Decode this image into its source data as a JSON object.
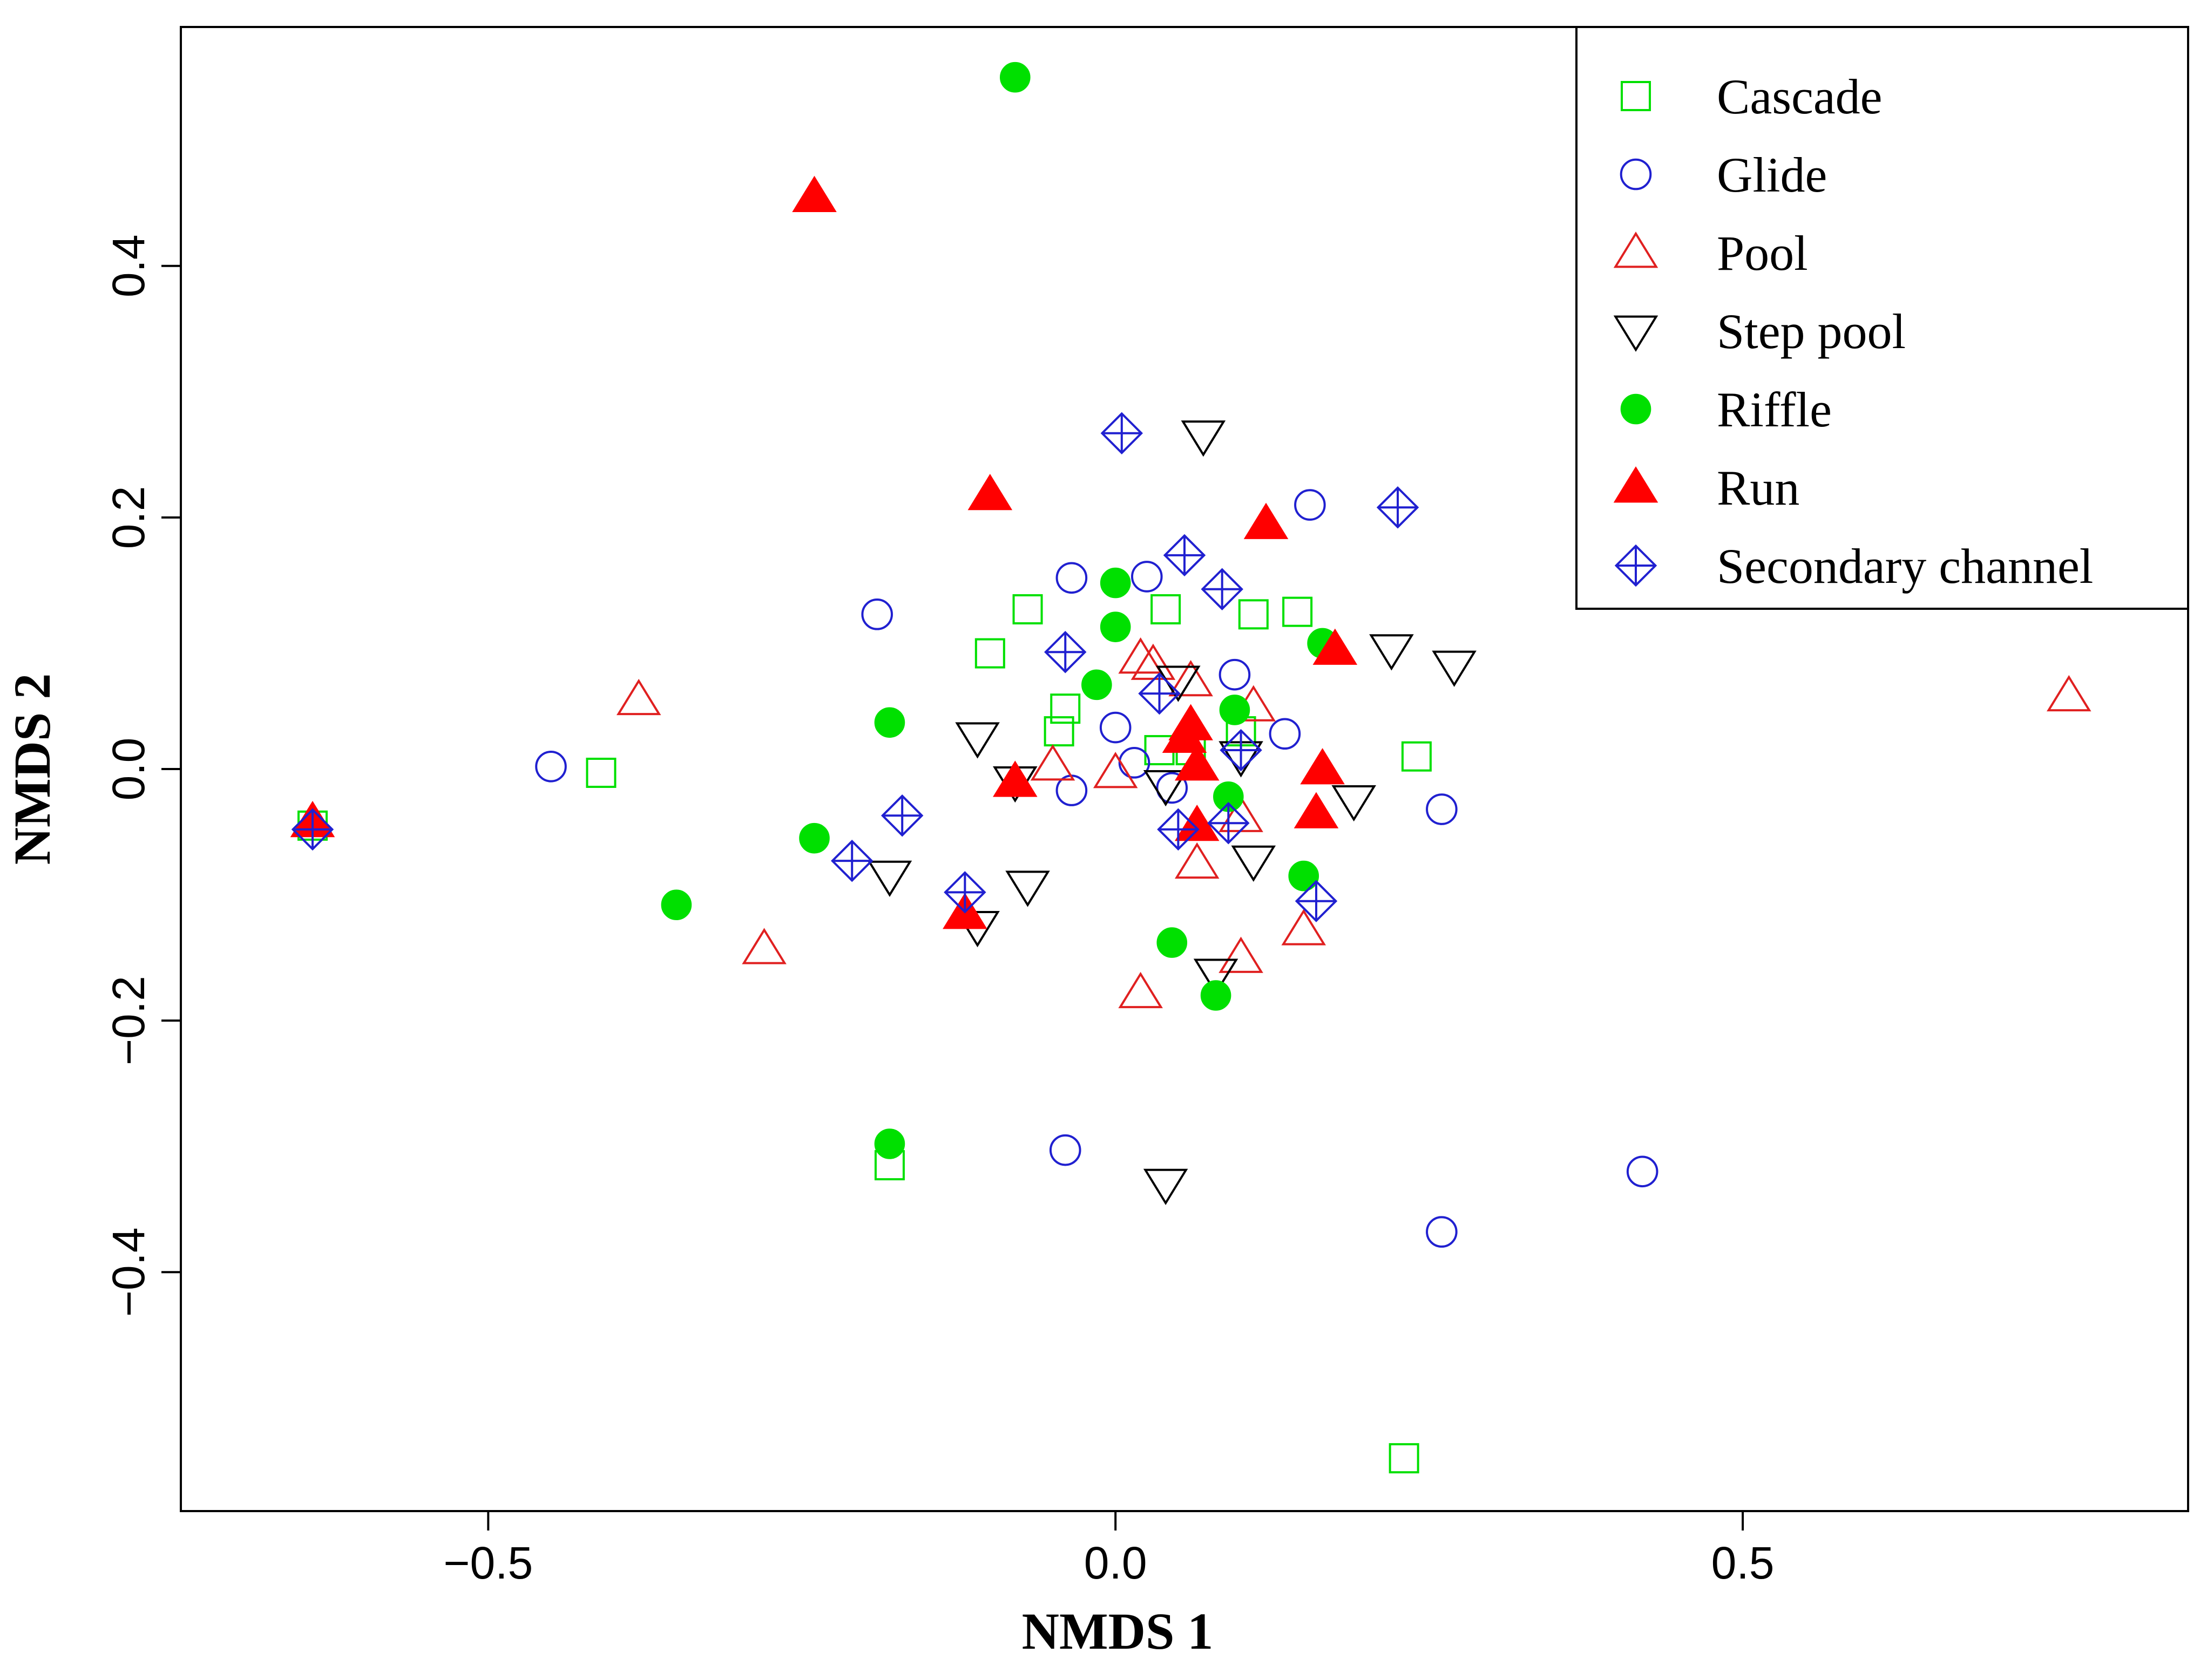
{
  "chart_data": {
    "type": "scatter",
    "title": "",
    "xlabel": "NMDS 1",
    "ylabel": "NMDS 2",
    "xlim": [
      -0.745,
      0.855
    ],
    "ylim": [
      -0.59,
      0.59
    ],
    "xticks": [
      -0.5,
      0.0,
      0.5
    ],
    "xtick_labels": [
      "−0.5",
      "0.0",
      "0.5"
    ],
    "yticks": [
      -0.4,
      -0.2,
      0.0,
      0.2,
      0.4
    ],
    "ytick_labels": [
      "−0.4",
      "−0.2",
      "0.0",
      "0.2",
      "0.4"
    ],
    "legend_position": "top-right",
    "series": [
      {
        "name": "Cascade",
        "marker": "square-open",
        "color": "#00e000",
        "points": [
          [
            -0.64,
            -0.045
          ],
          [
            -0.41,
            -0.003
          ],
          [
            -0.1,
            0.092
          ],
          [
            -0.07,
            0.127
          ],
          [
            -0.04,
            0.048
          ],
          [
            -0.045,
            0.03
          ],
          [
            0.04,
            0.127
          ],
          [
            0.035,
            0.015
          ],
          [
            0.06,
            0.015
          ],
          [
            0.11,
            0.123
          ],
          [
            0.145,
            0.125
          ],
          [
            0.24,
            0.01
          ],
          [
            0.1,
            0.03
          ],
          [
            -0.18,
            -0.315
          ],
          [
            0.23,
            -0.548
          ]
        ]
      },
      {
        "name": "Glide",
        "marker": "circle-open",
        "color": "#2020d0",
        "points": [
          [
            -0.45,
            0.002
          ],
          [
            -0.19,
            0.123
          ],
          [
            -0.035,
            0.152
          ],
          [
            0.025,
            0.153
          ],
          [
            0.155,
            0.21
          ],
          [
            0.0,
            0.033
          ],
          [
            0.015,
            0.005
          ],
          [
            0.045,
            -0.015
          ],
          [
            -0.035,
            -0.017
          ],
          [
            0.095,
            0.075
          ],
          [
            0.135,
            0.028
          ],
          [
            0.26,
            -0.032
          ],
          [
            -0.04,
            -0.303
          ],
          [
            0.26,
            -0.368
          ],
          [
            0.42,
            -0.32
          ]
        ]
      },
      {
        "name": "Pool",
        "marker": "triangle-up-open",
        "color": "#e02020",
        "points": [
          [
            -0.38,
            0.055
          ],
          [
            -0.28,
            -0.143
          ],
          [
            0.76,
            0.058
          ],
          [
            -0.05,
            0.003
          ],
          [
            0.0,
            -0.003
          ],
          [
            0.02,
            0.088
          ],
          [
            0.03,
            0.083
          ],
          [
            0.06,
            0.07
          ],
          [
            0.11,
            0.05
          ],
          [
            0.1,
            -0.038
          ],
          [
            0.065,
            -0.075
          ],
          [
            0.1,
            -0.15
          ],
          [
            0.15,
            -0.128
          ],
          [
            0.02,
            -0.178
          ]
        ]
      },
      {
        "name": "Step pool",
        "marker": "triangle-down-open",
        "color": "#000000",
        "points": [
          [
            0.07,
            0.265
          ],
          [
            -0.11,
            0.025
          ],
          [
            -0.08,
            -0.01
          ],
          [
            -0.18,
            -0.085
          ],
          [
            -0.11,
            -0.125
          ],
          [
            -0.07,
            -0.093
          ],
          [
            0.05,
            0.07
          ],
          [
            0.04,
            -0.013
          ],
          [
            0.1,
            0.01
          ],
          [
            0.11,
            -0.073
          ],
          [
            0.19,
            -0.025
          ],
          [
            0.22,
            0.095
          ],
          [
            0.27,
            0.082
          ],
          [
            0.08,
            -0.163
          ],
          [
            0.04,
            -0.33
          ]
        ]
      },
      {
        "name": "Riffle",
        "marker": "circle-filled",
        "color": "#00e000",
        "points": [
          [
            -0.08,
            0.55
          ],
          [
            -0.35,
            -0.108
          ],
          [
            -0.24,
            -0.055
          ],
          [
            -0.18,
            0.037
          ],
          [
            0.0,
            0.148
          ],
          [
            0.0,
            0.113
          ],
          [
            -0.015,
            0.067
          ],
          [
            0.095,
            0.047
          ],
          [
            0.165,
            0.1
          ],
          [
            0.09,
            -0.022
          ],
          [
            0.15,
            -0.085
          ],
          [
            0.045,
            -0.138
          ],
          [
            0.08,
            -0.18
          ],
          [
            -0.18,
            -0.298
          ]
        ]
      },
      {
        "name": "Run",
        "marker": "triangle-up-filled",
        "color": "#ff0000",
        "points": [
          [
            -0.24,
            0.455
          ],
          [
            -0.1,
            0.218
          ],
          [
            0.12,
            0.195
          ],
          [
            0.175,
            0.095
          ],
          [
            0.06,
            0.035
          ],
          [
            0.055,
            0.025
          ],
          [
            0.065,
            0.003
          ],
          [
            0.165,
            0.0
          ],
          [
            -0.08,
            -0.01
          ],
          [
            0.16,
            -0.035
          ],
          [
            0.065,
            -0.045
          ],
          [
            -0.12,
            -0.115
          ],
          [
            -0.64,
            -0.042
          ]
        ]
      },
      {
        "name": "Secondary channel",
        "marker": "diamond-plus",
        "color": "#2020d0",
        "points": [
          [
            0.005,
            0.267
          ],
          [
            -0.04,
            0.093
          ],
          [
            0.055,
            0.17
          ],
          [
            0.085,
            0.143
          ],
          [
            0.225,
            0.208
          ],
          [
            0.035,
            0.06
          ],
          [
            0.1,
            0.015
          ],
          [
            -0.17,
            -0.037
          ],
          [
            -0.21,
            -0.073
          ],
          [
            -0.12,
            -0.098
          ],
          [
            0.05,
            -0.048
          ],
          [
            0.09,
            -0.043
          ],
          [
            0.16,
            -0.105
          ],
          [
            -0.64,
            -0.048
          ]
        ]
      }
    ]
  }
}
